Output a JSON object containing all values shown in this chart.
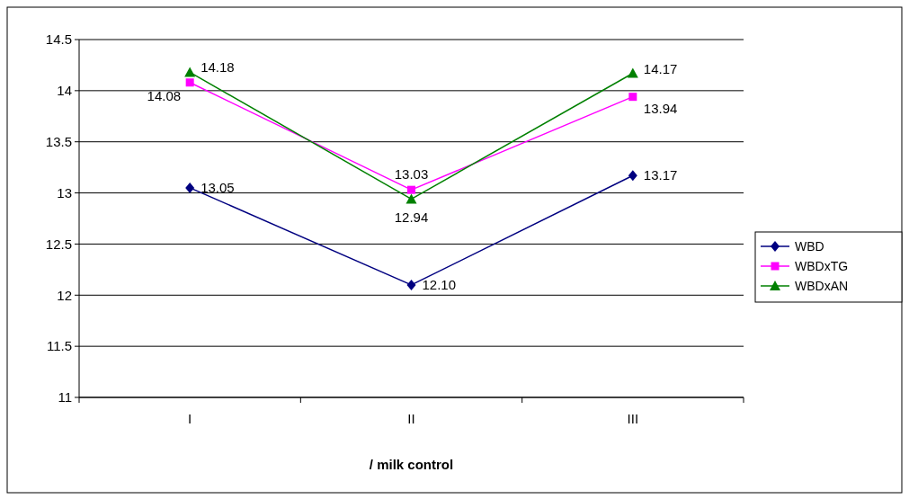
{
  "chart_data": {
    "type": "line",
    "xlabel": "/ milk control",
    "categories": [
      "I",
      "II",
      "III"
    ],
    "ylim": [
      11,
      14.5
    ],
    "yticks": [
      11,
      11.5,
      12,
      12.5,
      13,
      13.5,
      14,
      14.5
    ],
    "grid": "y",
    "legend": "right",
    "series": [
      {
        "name": "WBD",
        "color": "#000080",
        "marker": "diamond",
        "values": [
          13.05,
          12.1,
          13.17
        ],
        "value_labels": [
          "13.05",
          "12.10",
          "13.17"
        ]
      },
      {
        "name": "WBDxTG",
        "color": "#ff00ff",
        "marker": "square",
        "values": [
          14.08,
          13.03,
          13.94
        ],
        "value_labels": [
          "14.08",
          "13.03",
          "13.94"
        ]
      },
      {
        "name": "WBDxAN",
        "color": "#008000",
        "marker": "triangle",
        "values": [
          14.18,
          12.94,
          14.17
        ],
        "value_labels": [
          "14.18",
          "12.94",
          "14.17"
        ]
      }
    ]
  }
}
